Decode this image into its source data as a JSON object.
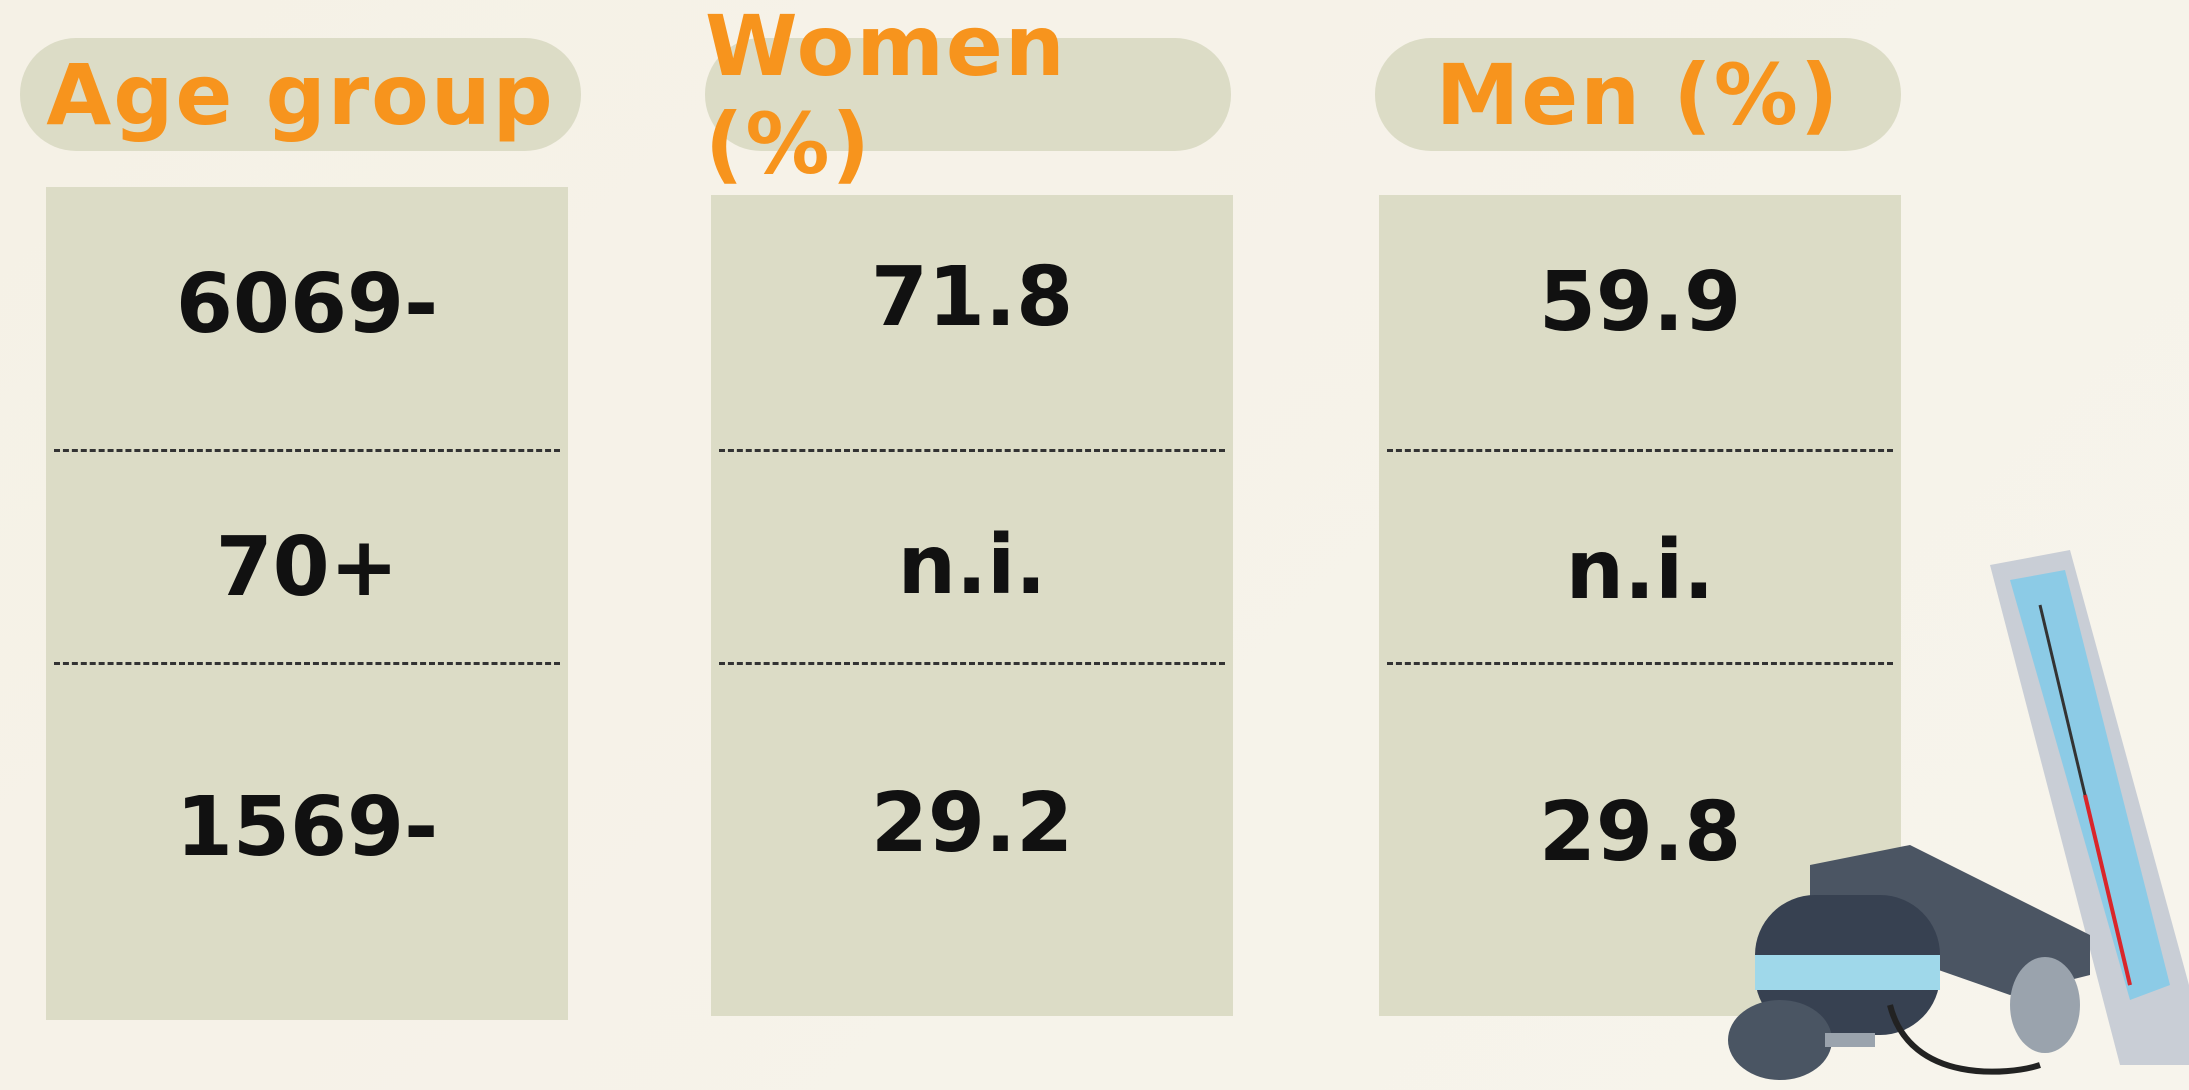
{
  "table": {
    "headers": [
      "Age group",
      "Women (%)",
      "Men (%)"
    ],
    "rows": [
      [
        "6069-",
        71.8,
        59.9
      ],
      [
        "70+",
        "n.i.",
        "n.i."
      ],
      [
        "1569-",
        29.2,
        29.8
      ]
    ]
  }
}
